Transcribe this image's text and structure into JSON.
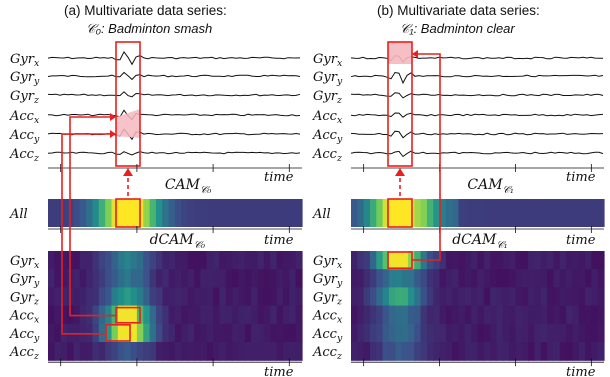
{
  "panels": [
    {
      "title": "(a) Multivariate data series:",
      "class_label": "𝒞₀: Badminton smash",
      "cam_label": "CAM",
      "cam_sub": "𝒞₀",
      "dcam_label": "dCAM",
      "dcam_sub": "𝒞₀",
      "highlight_note": "Acc_x and Acc_y highlighted in dCAM; linked to smash peak in series"
    },
    {
      "title": "(b) Multivariate data series:",
      "class_label": "𝒞₁: Badminton clear",
      "cam_label": "CAM",
      "cam_sub": "𝒞₁",
      "dcam_label": "dCAM",
      "dcam_sub": "𝒞₁",
      "highlight_note": "Gyr_x highlighted in dCAM; linked to clear peak in series"
    }
  ],
  "dimension_labels": [
    {
      "base": "Gyr",
      "sub": "x"
    },
    {
      "base": "Gyr",
      "sub": "y"
    },
    {
      "base": "Gyr",
      "sub": "z"
    },
    {
      "base": "Acc",
      "sub": "x"
    },
    {
      "base": "Acc",
      "sub": "y"
    },
    {
      "base": "Acc",
      "sub": "z"
    }
  ],
  "all_label": "All",
  "time_label": "time",
  "colors": {
    "highlight": "#e8201f",
    "highlight_fill": "#f4b8bf",
    "heat_low": "#440154",
    "heat_mid": "#21918c",
    "heat_high": "#fde725"
  }
}
